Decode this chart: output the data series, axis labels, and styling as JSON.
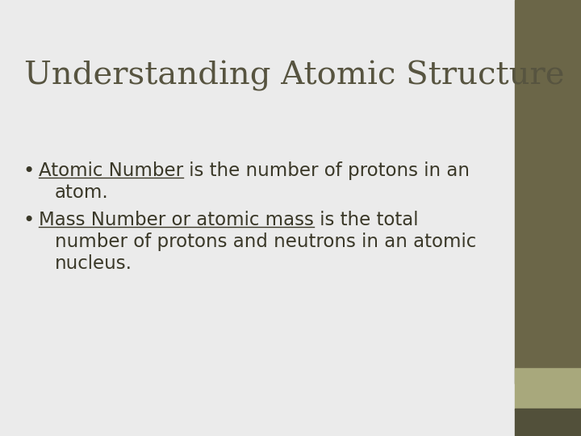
{
  "title": "Understanding Atomic Structure",
  "title_color": "#575440",
  "title_fontsize": 29,
  "slide_bg": "#ebebeb",
  "sidebar_color": "#6b6648",
  "sidebar_tan_color": "#a8a87c",
  "sidebar_dark_color": "#52503a",
  "text_color": "#3a3828",
  "bullet_fontsize": 16.5,
  "bullet1_underline_text": "Atomic Number",
  "bullet1_plain_text": " is the number of protons in an",
  "bullet1_line2": "atom.",
  "bullet2_underline_text": "Mass Number or atomic mass",
  "bullet2_plain_text": " is the total",
  "bullet2_line2": "number of protons and neutrons in an atomic",
  "bullet2_line3": "nucleus."
}
